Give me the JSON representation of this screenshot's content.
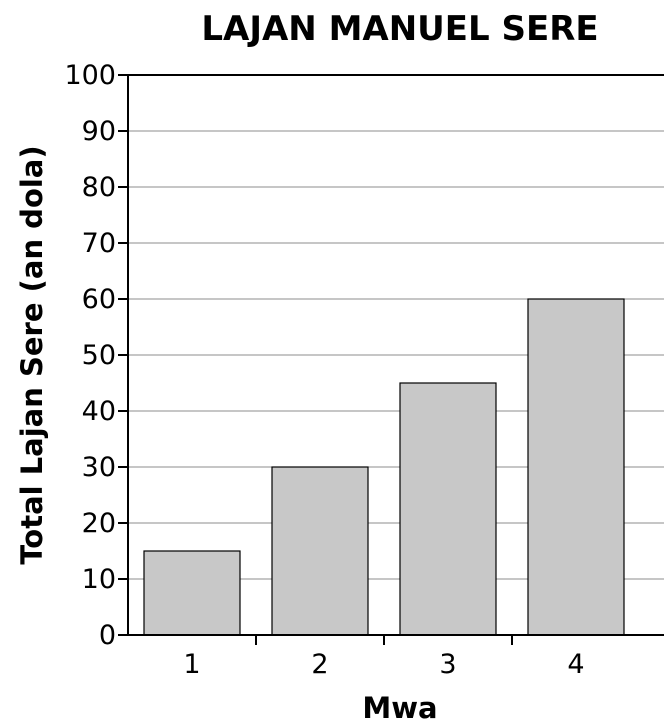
{
  "chart_data": {
    "type": "bar",
    "title": "LAJAN MANUEL SERE",
    "xlabel": "Mwa",
    "ylabel": "Total Lajan Sere (an dola)",
    "categories": [
      "1",
      "2",
      "3",
      "4"
    ],
    "values": [
      15,
      30,
      45,
      60
    ],
    "ylim": [
      0,
      100
    ],
    "yticks": [
      "0",
      "10",
      "20",
      "30",
      "40",
      "50",
      "60",
      "70",
      "80",
      "90",
      "100"
    ],
    "grid": true,
    "bar_color": "#c8c8c8"
  }
}
